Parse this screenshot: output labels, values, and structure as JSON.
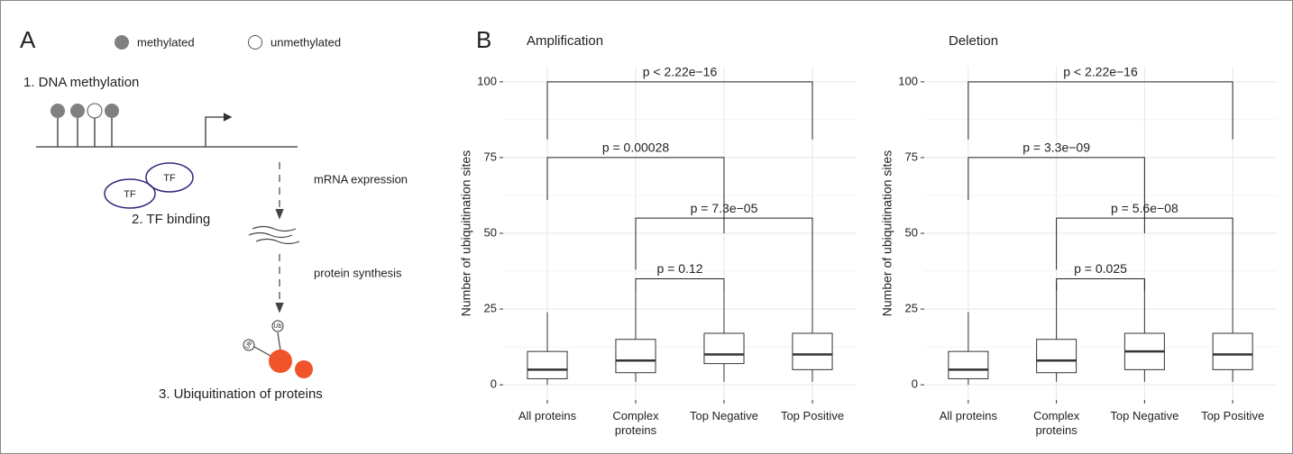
{
  "panel_a": {
    "label": "A",
    "legend": [
      "methylated",
      "unmethylated"
    ],
    "step1": "1. DNA methylation",
    "tf": [
      "TF",
      "TF"
    ],
    "step2": "2. TF binding",
    "arrow1": "mRNA expression",
    "arrow2": "protein synthesis",
    "ub": [
      "Ub",
      "Ub"
    ],
    "step3": "3. Ubiquitination of proteins"
  },
  "panel_b_label": "B",
  "chart_data": [
    {
      "type": "box",
      "title": "Amplification",
      "y_label": "Number of ubiquitination sites",
      "categories": [
        "All proteins",
        "Complex proteins",
        "Top Negative",
        "Top Positive"
      ],
      "boxes": [
        {
          "min": 0,
          "q1": 2,
          "median": 5,
          "q3": 11,
          "max": 24
        },
        {
          "min": 1,
          "q1": 4,
          "median": 8,
          "q3": 15,
          "max": 34
        },
        {
          "min": 1,
          "q1": 7,
          "median": 10,
          "q3": 17,
          "max": 35
        },
        {
          "min": 1,
          "q1": 5,
          "median": 10,
          "q3": 17,
          "max": 35
        }
      ],
      "ylim": [
        -5,
        105
      ],
      "yticks": [
        0,
        25,
        50,
        75,
        100
      ],
      "grid": true,
      "color": "#ffffff",
      "comparisons": [
        {
          "label": "p < 2.22e−16",
          "from": 0,
          "to": 3,
          "y": 100,
          "ends": [
            81,
            81
          ]
        },
        {
          "label": "p = 0.00028",
          "from": 0,
          "to": 2,
          "y": 75,
          "ends": [
            61,
            50
          ]
        },
        {
          "label": "p = 7.3e−05",
          "from": 1,
          "to": 3,
          "y": 55,
          "ends": [
            38,
            35
          ]
        },
        {
          "label": "p = 0.12",
          "from": 1,
          "to": 2,
          "y": 35,
          "ends": [
            31,
            31
          ]
        }
      ]
    },
    {
      "type": "box",
      "title": "Deletion",
      "y_label": "Number of ubiquitination sites",
      "categories": [
        "All proteins",
        "Complex proteins",
        "Top Negative",
        "Top Positive"
      ],
      "boxes": [
        {
          "min": 0,
          "q1": 2,
          "median": 5,
          "q3": 11,
          "max": 24
        },
        {
          "min": 1,
          "q1": 4,
          "median": 8,
          "q3": 15,
          "max": 34
        },
        {
          "min": 1,
          "q1": 5,
          "median": 11,
          "q3": 17,
          "max": 35
        },
        {
          "min": 1,
          "q1": 5,
          "median": 10,
          "q3": 17,
          "max": 35
        }
      ],
      "ylim": [
        -5,
        105
      ],
      "yticks": [
        0,
        25,
        50,
        75,
        100
      ],
      "grid": true,
      "color": "#ffffff",
      "comparisons": [
        {
          "label": "p < 2.22e−16",
          "from": 0,
          "to": 3,
          "y": 100,
          "ends": [
            81,
            81
          ]
        },
        {
          "label": "p = 3.3e−09",
          "from": 0,
          "to": 2,
          "y": 75,
          "ends": [
            61,
            50
          ]
        },
        {
          "label": "p = 5.6e−08",
          "from": 1,
          "to": 3,
          "y": 55,
          "ends": [
            38,
            35
          ]
        },
        {
          "label": "p = 0.025",
          "from": 1,
          "to": 2,
          "y": 35,
          "ends": [
            31,
            31
          ]
        }
      ]
    }
  ]
}
